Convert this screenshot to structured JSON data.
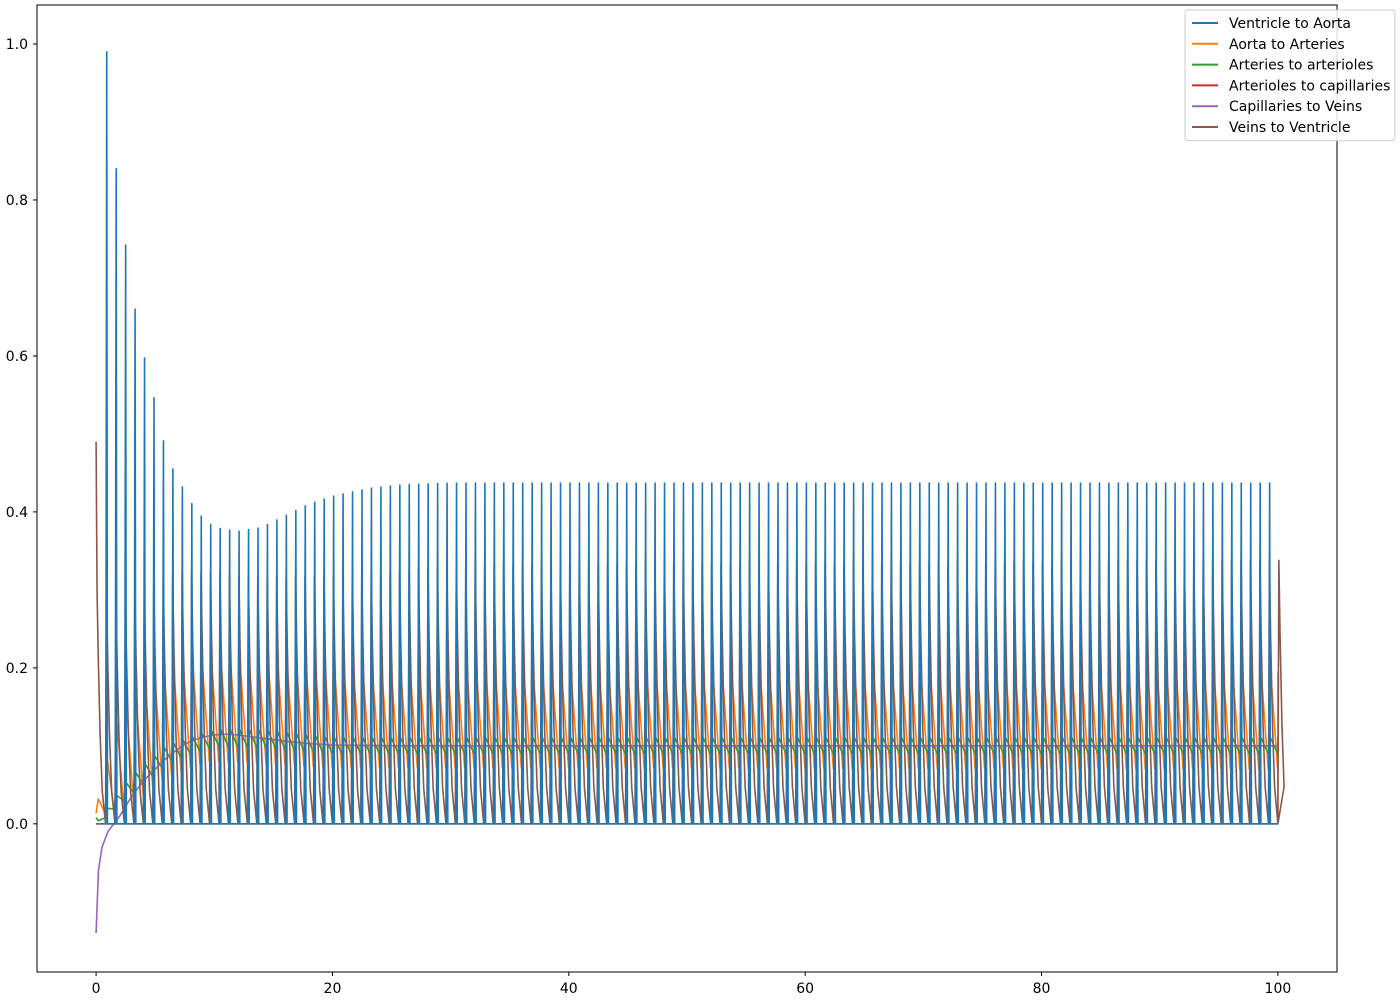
{
  "chart_data": {
    "type": "line",
    "title": "",
    "xlabel": "",
    "ylabel": "",
    "xlim": [
      -5,
      105
    ],
    "ylim": [
      -0.19,
      1.05
    ],
    "x_ticks": [
      0,
      20,
      40,
      60,
      80,
      100
    ],
    "y_ticks": [
      0.0,
      0.2,
      0.4,
      0.6,
      0.8,
      1.0
    ],
    "x_tick_labels": [
      "0",
      "20",
      "40",
      "60",
      "80",
      "100"
    ],
    "y_tick_labels": [
      "0.0",
      "0.2",
      "0.4",
      "0.6",
      "0.8",
      "1.0"
    ],
    "grid": false,
    "legend_position": "top-right",
    "t_end": 100,
    "beat_period": 0.8,
    "series": [
      {
        "name": "Ventricle to Aorta",
        "color": "#1f77b4",
        "peak_envelope": [
          [
            0.9,
            0.99
          ],
          [
            1.7,
            0.84
          ],
          [
            2.6,
            0.73
          ],
          [
            3.4,
            0.65
          ],
          [
            4.2,
            0.59
          ],
          [
            5.0,
            0.54
          ],
          [
            6.0,
            0.47
          ],
          [
            7.0,
            0.44
          ],
          [
            8.5,
            0.4
          ],
          [
            10.0,
            0.38
          ],
          [
            12.0,
            0.375
          ],
          [
            14.0,
            0.38
          ],
          [
            16.0,
            0.395
          ],
          [
            18.0,
            0.41
          ],
          [
            20.0,
            0.42
          ],
          [
            23.0,
            0.43
          ],
          [
            26.0,
            0.435
          ],
          [
            30.0,
            0.437
          ],
          [
            100.0,
            0.437
          ]
        ],
        "trough_envelope": [
          [
            0,
            0.0
          ],
          [
            100,
            0.0
          ]
        ]
      },
      {
        "name": "Aorta to Arteries",
        "color": "#ff7f0e",
        "peak_envelope": [
          [
            0,
            0.02
          ],
          [
            2,
            0.14
          ],
          [
            5,
            0.185
          ],
          [
            8,
            0.205
          ],
          [
            12,
            0.207
          ],
          [
            16,
            0.2
          ],
          [
            22,
            0.195
          ],
          [
            100,
            0.195
          ]
        ],
        "trough_envelope": [
          [
            0,
            0.015
          ],
          [
            2,
            0.01
          ],
          [
            5,
            0.055
          ],
          [
            9,
            0.08
          ],
          [
            14,
            0.078
          ],
          [
            20,
            0.072
          ],
          [
            100,
            0.07
          ]
        ]
      },
      {
        "name": "Arteries to arterioles",
        "color": "#2ca02c",
        "peak_envelope": [
          [
            0,
            0.0
          ],
          [
            3,
            0.06
          ],
          [
            6,
            0.1
          ],
          [
            10,
            0.12
          ],
          [
            14,
            0.12
          ],
          [
            20,
            0.11
          ],
          [
            100,
            0.11
          ]
        ],
        "trough_envelope": [
          [
            0,
            0.0
          ],
          [
            3,
            0.04
          ],
          [
            6,
            0.08
          ],
          [
            10,
            0.1
          ],
          [
            14,
            0.098
          ],
          [
            20,
            0.09
          ],
          [
            100,
            0.09
          ]
        ]
      },
      {
        "name": "Arterioles to capillaries",
        "color": "#d62728",
        "peak_envelope": [
          [
            0,
            0.0
          ],
          [
            100,
            0.0
          ]
        ],
        "trough_envelope": [
          [
            0,
            0.0
          ],
          [
            100,
            0.0
          ]
        ]
      },
      {
        "name": "Capillaries to Veins",
        "color": "#9467bd",
        "points": [
          [
            0,
            -0.14
          ],
          [
            0.2,
            -0.06
          ],
          [
            0.5,
            -0.03
          ],
          [
            1.0,
            -0.01
          ],
          [
            2.0,
            0.01
          ],
          [
            3.0,
            0.035
          ],
          [
            4.0,
            0.055
          ],
          [
            5.0,
            0.07
          ],
          [
            6.0,
            0.085
          ],
          [
            7.0,
            0.097
          ],
          [
            8.0,
            0.106
          ],
          [
            9.0,
            0.111
          ],
          [
            10.0,
            0.114
          ],
          [
            11.0,
            0.115
          ],
          [
            12.0,
            0.114
          ],
          [
            13.0,
            0.112
          ],
          [
            14.0,
            0.11
          ],
          [
            16.0,
            0.106
          ],
          [
            18.0,
            0.103
          ],
          [
            20.0,
            0.101
          ],
          [
            25.0,
            0.1
          ],
          [
            100.0,
            0.1
          ]
        ]
      },
      {
        "name": "Veins to Ventricle",
        "color": "#8c564b",
        "peak_envelope": [
          [
            0,
            0.49
          ],
          [
            0.1,
            0.3
          ],
          [
            1.5,
            0.29
          ],
          [
            3,
            0.295
          ],
          [
            5,
            0.31
          ],
          [
            7,
            0.322
          ],
          [
            9,
            0.323
          ],
          [
            12,
            0.318
          ],
          [
            16,
            0.316
          ],
          [
            20,
            0.318
          ],
          [
            30,
            0.33
          ],
          [
            50,
            0.335
          ],
          [
            100,
            0.338
          ]
        ],
        "trough_envelope": [
          [
            0,
            0.0
          ],
          [
            100,
            0.0
          ]
        ],
        "end_value": 0.08
      }
    ]
  }
}
